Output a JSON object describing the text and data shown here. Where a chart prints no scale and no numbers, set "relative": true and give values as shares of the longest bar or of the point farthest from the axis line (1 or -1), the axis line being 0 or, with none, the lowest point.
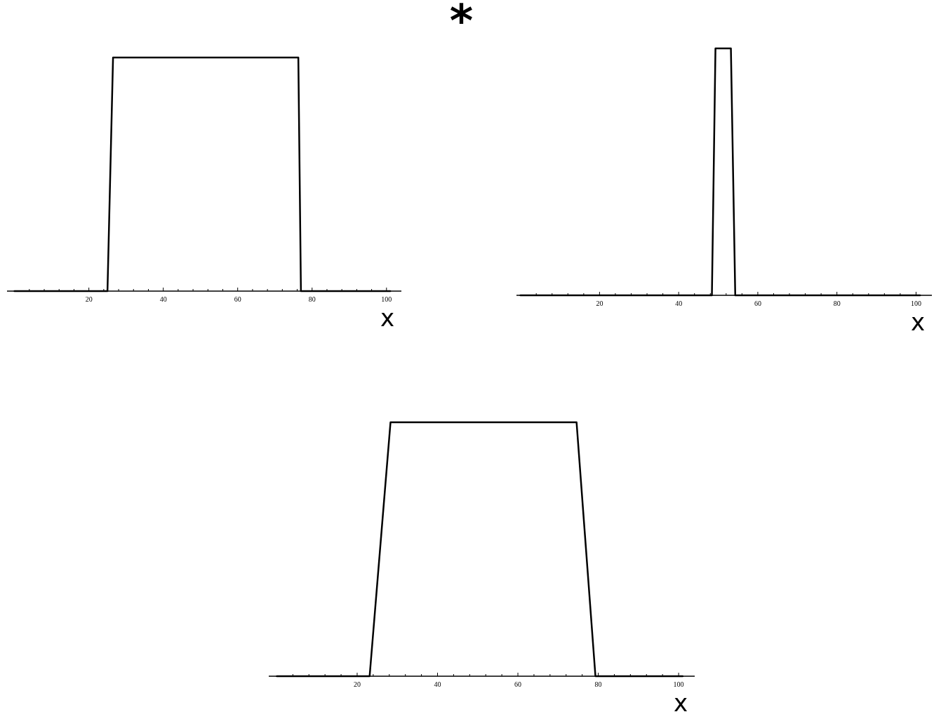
{
  "chart_data": [
    {
      "type": "line",
      "relative": true,
      "annotations": [
        "*"
      ],
      "xlabel": "x",
      "xlim": [
        -2,
        104
      ],
      "xticks": [
        {
          "value": 4,
          "label": null
        },
        {
          "value": 8,
          "label": null
        },
        {
          "value": 12,
          "label": null
        },
        {
          "value": 16,
          "label": null
        },
        20,
        {
          "value": 24,
          "label": null
        },
        {
          "value": 28,
          "label": null
        },
        {
          "value": 32,
          "label": null
        },
        {
          "value": 36,
          "label": null
        },
        40,
        {
          "value": 44,
          "label": null
        },
        {
          "value": 48,
          "label": null
        },
        {
          "value": 52,
          "label": null
        },
        {
          "value": 56,
          "label": null
        },
        60,
        {
          "value": 64,
          "label": null
        },
        {
          "value": 68,
          "label": null
        },
        {
          "value": 72,
          "label": null
        },
        {
          "value": 76,
          "label": null
        },
        80,
        {
          "value": 84,
          "label": null
        },
        {
          "value": 88,
          "label": null
        },
        {
          "value": 92,
          "label": null
        },
        {
          "value": 96,
          "label": null
        },
        100
      ],
      "series": [
        {
          "color": "#000000",
          "x": [
            0,
            25,
            26.5,
            76.3,
            77,
            101
          ],
          "values": [
            0,
            0,
            1,
            1,
            0,
            0
          ]
        }
      ]
    },
    {
      "type": "line",
      "relative": true,
      "xlabel": "x",
      "xlim": [
        -1,
        104
      ],
      "xticks": [
        {
          "value": 4,
          "label": null
        },
        {
          "value": 8,
          "label": null
        },
        {
          "value": 12,
          "label": null
        },
        {
          "value": 16,
          "label": null
        },
        20,
        {
          "value": 24,
          "label": null
        },
        {
          "value": 28,
          "label": null
        },
        {
          "value": 32,
          "label": null
        },
        {
          "value": 36,
          "label": null
        },
        40,
        {
          "value": 44,
          "label": null
        },
        {
          "value": 48,
          "label": null
        },
        {
          "value": 52,
          "label": null
        },
        {
          "value": 56,
          "label": null
        },
        60,
        {
          "value": 64,
          "label": null
        },
        {
          "value": 68,
          "label": null
        },
        {
          "value": 72,
          "label": null
        },
        {
          "value": 76,
          "label": null
        },
        80,
        {
          "value": 84,
          "label": null
        },
        {
          "value": 88,
          "label": null
        },
        {
          "value": 92,
          "label": null
        },
        {
          "value": 96,
          "label": null
        },
        100
      ],
      "series": [
        {
          "color": "#000000",
          "x": [
            0,
            48.4,
            49.3,
            53.2,
            54.3,
            101
          ],
          "values": [
            0,
            0,
            1,
            1,
            0,
            0
          ]
        }
      ]
    },
    {
      "type": "line",
      "relative": true,
      "xlabel": "x",
      "xlim": [
        -2,
        104
      ],
      "xticks": [
        {
          "value": 4,
          "label": null
        },
        {
          "value": 8,
          "label": null
        },
        {
          "value": 12,
          "label": null
        },
        {
          "value": 16,
          "label": null
        },
        20,
        {
          "value": 24,
          "label": null
        },
        {
          "value": 28,
          "label": null
        },
        {
          "value": 32,
          "label": null
        },
        {
          "value": 36,
          "label": null
        },
        40,
        {
          "value": 44,
          "label": null
        },
        {
          "value": 48,
          "label": null
        },
        {
          "value": 52,
          "label": null
        },
        {
          "value": 56,
          "label": null
        },
        60,
        {
          "value": 64,
          "label": null
        },
        {
          "value": 68,
          "label": null
        },
        {
          "value": 72,
          "label": null
        },
        {
          "value": 76,
          "label": null
        },
        80,
        {
          "value": 84,
          "label": null
        },
        {
          "value": 88,
          "label": null
        },
        {
          "value": 92,
          "label": null
        },
        {
          "value": 96,
          "label": null
        },
        100
      ],
      "series": [
        {
          "color": "#000000",
          "x": [
            0,
            23.1,
            28.3,
            74.6,
            79.3,
            101
          ],
          "values": [
            0,
            0,
            1,
            1,
            0,
            0
          ]
        }
      ]
    }
  ]
}
